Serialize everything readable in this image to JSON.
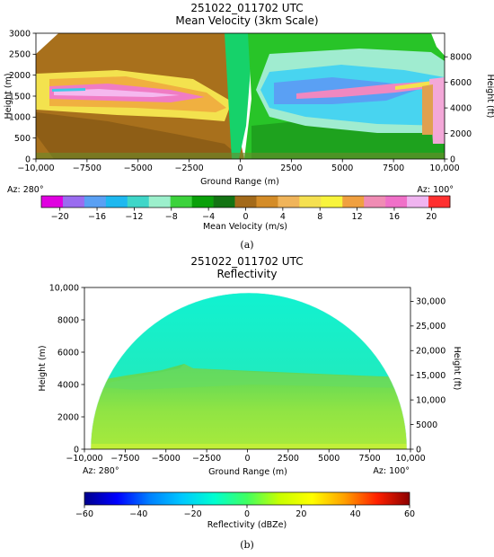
{
  "panel_a": {
    "caption": "(a)",
    "title_line1": "251022_011702 UTC",
    "title_line2": "Mean Velocity (3km Scale)",
    "az_left": "Az: 280°",
    "az_right": "Az: 100°",
    "colorbar_label": "Mean Velocity (m/s)"
  },
  "panel_b": {
    "caption": "(b)",
    "title_line1": "251022_011702 UTC",
    "title_line2": "Reflectivity",
    "az_left": "Az: 280°",
    "az_right": "Az: 100°",
    "colorbar_label": "Reflectivity (dBZe)"
  },
  "colors": {
    "velocity_scale": [
      "#e000e0",
      "#9a6cf0",
      "#5aa0f4",
      "#1eb8f0",
      "#3fd6c8",
      "#9cf0cc",
      "#3cd23c",
      "#0aa00a",
      "#137313",
      "#a36a1a",
      "#d48c28",
      "#f0b45a",
      "#f5e050",
      "#f8f43c",
      "#f0a040",
      "#f08cb4",
      "#f070c8",
      "#f0b4f0",
      "#ff3030"
    ],
    "reflectivity_scale": [
      "#00008b",
      "#0000ff",
      "#0080ff",
      "#00c8ff",
      "#00ffd0",
      "#40ff60",
      "#c8ff00",
      "#ffff00",
      "#ffa000",
      "#ff2000",
      "#8b0000"
    ]
  },
  "chart_data": [
    {
      "type": "heatmap",
      "title": "251022_011702 UTC\nMean Velocity (3km Scale)",
      "xlabel": "Ground Range (m)",
      "ylabel": "Height (m)",
      "ylabel_right": "Height (ft)",
      "xlim": [
        -10000,
        10000
      ],
      "ylim": [
        0,
        3000
      ],
      "ylim_right": [
        0,
        9843
      ],
      "x_ticks": [
        -10000,
        -7500,
        -5000,
        -2500,
        0,
        2500,
        5000,
        7500,
        10000
      ],
      "x_tick_labels": [
        "−10,000",
        "−7500",
        "−5000",
        "−2500",
        "0",
        "2500",
        "5000",
        "7500",
        "10,000"
      ],
      "y_ticks": [
        0,
        500,
        1000,
        1500,
        2000,
        2500,
        3000
      ],
      "y_tick_labels": [
        "0",
        "500",
        "1000",
        "1500",
        "2000",
        "2500",
        "3000"
      ],
      "y_right_ticks": [
        0,
        2000,
        4000,
        6000,
        8000
      ],
      "y_right_tick_labels": [
        "0",
        "2000",
        "4000",
        "6000",
        "8000"
      ],
      "colorbar": {
        "label": "Mean Velocity (m/s)",
        "range": [
          -22,
          22
        ],
        "ticks": [
          -20,
          -16,
          -12,
          -8,
          -4,
          0,
          4,
          8,
          12,
          16,
          20
        ],
        "tick_labels": [
          "−20",
          "−16",
          "−12",
          "−8",
          "−4",
          "0",
          "4",
          "8",
          "12",
          "16",
          "20"
        ]
      },
      "annotations": [
        "Az: 280°",
        "Az: 100°"
      ]
    },
    {
      "type": "heatmap",
      "title": "251022_011702 UTC\nReflectivity",
      "xlabel": "Ground Range (m)",
      "ylabel": "Height (m)",
      "ylabel_right": "Height (ft)",
      "xlim": [
        -10000,
        10000
      ],
      "ylim": [
        0,
        10000
      ],
      "ylim_right": [
        0,
        32808
      ],
      "x_ticks": [
        -10000,
        -7500,
        -5000,
        -2500,
        0,
        2500,
        5000,
        7500,
        10000
      ],
      "x_tick_labels": [
        "−10,000",
        "−7500",
        "−5000",
        "−2500",
        "0",
        "2500",
        "5000",
        "7500",
        "10,000"
      ],
      "y_ticks": [
        0,
        2000,
        4000,
        6000,
        8000,
        10000
      ],
      "y_tick_labels": [
        "0",
        "2000",
        "4000",
        "6000",
        "8000",
        "10,000"
      ],
      "y_right_ticks": [
        0,
        5000,
        10000,
        15000,
        20000,
        25000,
        30000
      ],
      "y_right_tick_labels": [
        "0",
        "5000",
        "10,000",
        "15,000",
        "20,000",
        "25,000",
        "30,000"
      ],
      "colorbar": {
        "label": "Reflectivity (dBZe)",
        "range": [
          -60,
          60
        ],
        "ticks": [
          -60,
          -40,
          -20,
          0,
          20,
          40,
          60
        ],
        "tick_labels": [
          "−60",
          "−40",
          "−20",
          "0",
          "20",
          "40",
          "60"
        ]
      },
      "annotations": [
        "Az: 280°",
        "Az: 100°"
      ]
    }
  ]
}
